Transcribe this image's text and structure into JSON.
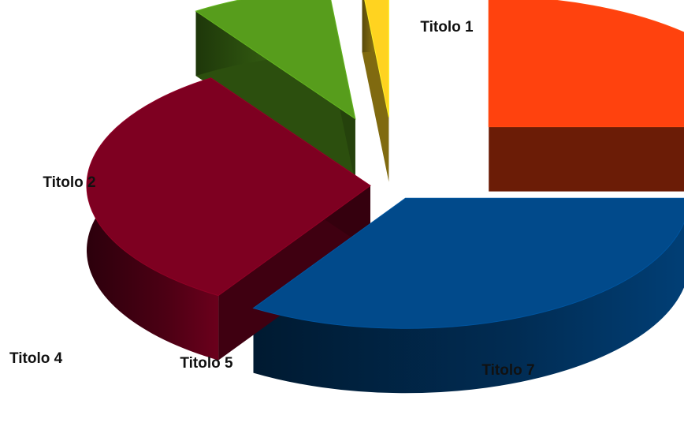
{
  "chart_data": {
    "type": "pie",
    "style": "3d-exploded",
    "title": "",
    "legend": "none",
    "slices": [
      {
        "label": "Titolo 1",
        "value": 34.0,
        "color": "#014A8B"
      },
      {
        "label": "Titolo 7",
        "value": 31.5,
        "color": "#7E0021"
      },
      {
        "label": "Titolo 5",
        "value": 8.0,
        "color": "#579D1C"
      },
      {
        "label": "Titolo 4",
        "value": 1.5,
        "color": "#FFD320"
      },
      {
        "label": "Titolo 2",
        "value": 25.0,
        "color": "#FF420E"
      }
    ]
  }
}
